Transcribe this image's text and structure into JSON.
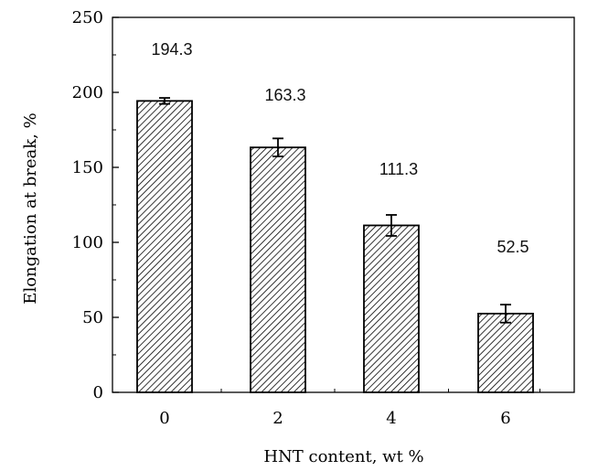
{
  "chart_data": {
    "type": "bar",
    "categories": [
      "0",
      "2",
      "4",
      "6"
    ],
    "values": [
      194.3,
      163.3,
      111.3,
      52.5
    ],
    "error": [
      2,
      6,
      7,
      6
    ],
    "data_labels": [
      "194.3",
      "163.3",
      "111.3",
      "52.5"
    ],
    "xlabel": "HNT content, wt %",
    "ylabel": "Elongation at break, %",
    "ylim": [
      0,
      250
    ],
    "yticks": [
      0,
      50,
      100,
      150,
      200,
      250
    ],
    "grid": false,
    "bar_pattern": "diagonal-hatch",
    "colors": {
      "bar_edge": "#000000",
      "hatch": "#000000",
      "background": "#ffffff"
    }
  }
}
